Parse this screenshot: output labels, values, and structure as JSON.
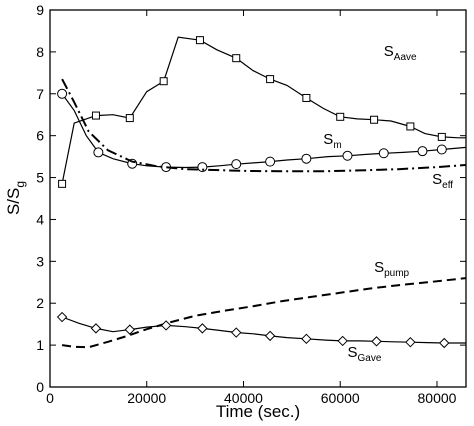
{
  "chart_data": {
    "type": "line",
    "xlabel": "Time (sec.)",
    "ylabel": {
      "main": "S/S",
      "sub": "g"
    },
    "xlim": [
      0,
      86000
    ],
    "ylim": [
      0,
      9
    ],
    "xticks": [
      0,
      20000,
      40000,
      60000,
      80000
    ],
    "yticks": [
      0,
      1,
      2,
      3,
      4,
      5,
      6,
      7,
      8,
      9
    ],
    "grid": false,
    "legend": "inline labels next to curves",
    "series": [
      {
        "id": "s_aave",
        "name": "S_Aave",
        "label_main": "S",
        "label_sub": "Aave",
        "style": "solid",
        "marker": "square",
        "x": [
          2500,
          5000,
          9500,
          13000,
          16500,
          20000,
          23500,
          26500,
          31000,
          34500,
          38500,
          42000,
          45500,
          49000,
          53000,
          56500,
          60000,
          63500,
          67000,
          70500,
          74500,
          77500,
          81000,
          84500,
          86000
        ],
        "y": [
          4.85,
          6.3,
          6.48,
          6.5,
          6.42,
          7.05,
          7.3,
          8.35,
          8.28,
          8.05,
          7.85,
          7.55,
          7.35,
          7.2,
          6.9,
          6.65,
          6.45,
          6.4,
          6.38,
          6.35,
          6.22,
          6.05,
          5.97,
          5.95,
          5.95
        ],
        "marker_indices": [
          0,
          2,
          4,
          6,
          8,
          10,
          12,
          14,
          16,
          18,
          20,
          22
        ]
      },
      {
        "id": "s_m",
        "name": "S_m",
        "label_main": "S",
        "label_sub": "m",
        "style": "solid",
        "marker": "circle",
        "x": [
          2500,
          5000,
          7500,
          10000,
          13000,
          17000,
          20000,
          24000,
          28000,
          31500,
          35000,
          38500,
          42000,
          45500,
          49000,
          53000,
          57500,
          61500,
          65000,
          69000,
          73000,
          77000,
          81000,
          86000
        ],
        "y": [
          7.0,
          6.6,
          6.0,
          5.6,
          5.45,
          5.33,
          5.28,
          5.25,
          5.24,
          5.25,
          5.28,
          5.32,
          5.35,
          5.38,
          5.42,
          5.45,
          5.5,
          5.52,
          5.55,
          5.58,
          5.6,
          5.63,
          5.67,
          5.72
        ],
        "marker_indices": [
          0,
          3,
          5,
          7,
          9,
          11,
          13,
          15,
          17,
          19,
          21,
          22
        ]
      },
      {
        "id": "s_eff",
        "name": "S_eff",
        "label_main": "S",
        "label_sub": "eff",
        "style": "dashdot",
        "marker": "none",
        "x": [
          2500,
          5000,
          8000,
          12000,
          17000,
          22000,
          28000,
          34000,
          40000,
          48000,
          56000,
          64000,
          72000,
          80000,
          86000
        ],
        "y": [
          7.35,
          6.8,
          6.1,
          5.65,
          5.38,
          5.27,
          5.2,
          5.18,
          5.16,
          5.15,
          5.15,
          5.17,
          5.2,
          5.25,
          5.3
        ]
      },
      {
        "id": "s_pump",
        "name": "S_pump",
        "label_main": "S",
        "label_sub": "pump",
        "style": "dashed",
        "marker": "none",
        "x": [
          2500,
          5000,
          8000,
          12000,
          16000,
          20000,
          25000,
          30000,
          36000,
          42000,
          48000,
          54000,
          60000,
          66000,
          72000,
          78000,
          86000
        ],
        "y": [
          1.0,
          0.96,
          0.95,
          1.08,
          1.22,
          1.38,
          1.55,
          1.7,
          1.82,
          1.93,
          2.05,
          2.15,
          2.25,
          2.35,
          2.43,
          2.5,
          2.6
        ]
      },
      {
        "id": "s_gave",
        "name": "S_Gave",
        "label_main": "S",
        "label_sub": "Gave",
        "style": "solid",
        "marker": "diamond",
        "x": [
          2500,
          6000,
          9500,
          13000,
          16500,
          20000,
          24000,
          28000,
          31500,
          35000,
          38500,
          42000,
          45500,
          49000,
          53000,
          57000,
          60500,
          64000,
          67500,
          71000,
          74500,
          78000,
          81500,
          86000
        ],
        "y": [
          1.67,
          1.52,
          1.4,
          1.32,
          1.37,
          1.43,
          1.47,
          1.44,
          1.4,
          1.35,
          1.3,
          1.27,
          1.22,
          1.18,
          1.15,
          1.12,
          1.1,
          1.1,
          1.09,
          1.08,
          1.07,
          1.06,
          1.05,
          1.05
        ],
        "marker_indices": [
          0,
          2,
          4,
          6,
          8,
          10,
          12,
          14,
          16,
          18,
          20,
          22
        ]
      }
    ]
  }
}
